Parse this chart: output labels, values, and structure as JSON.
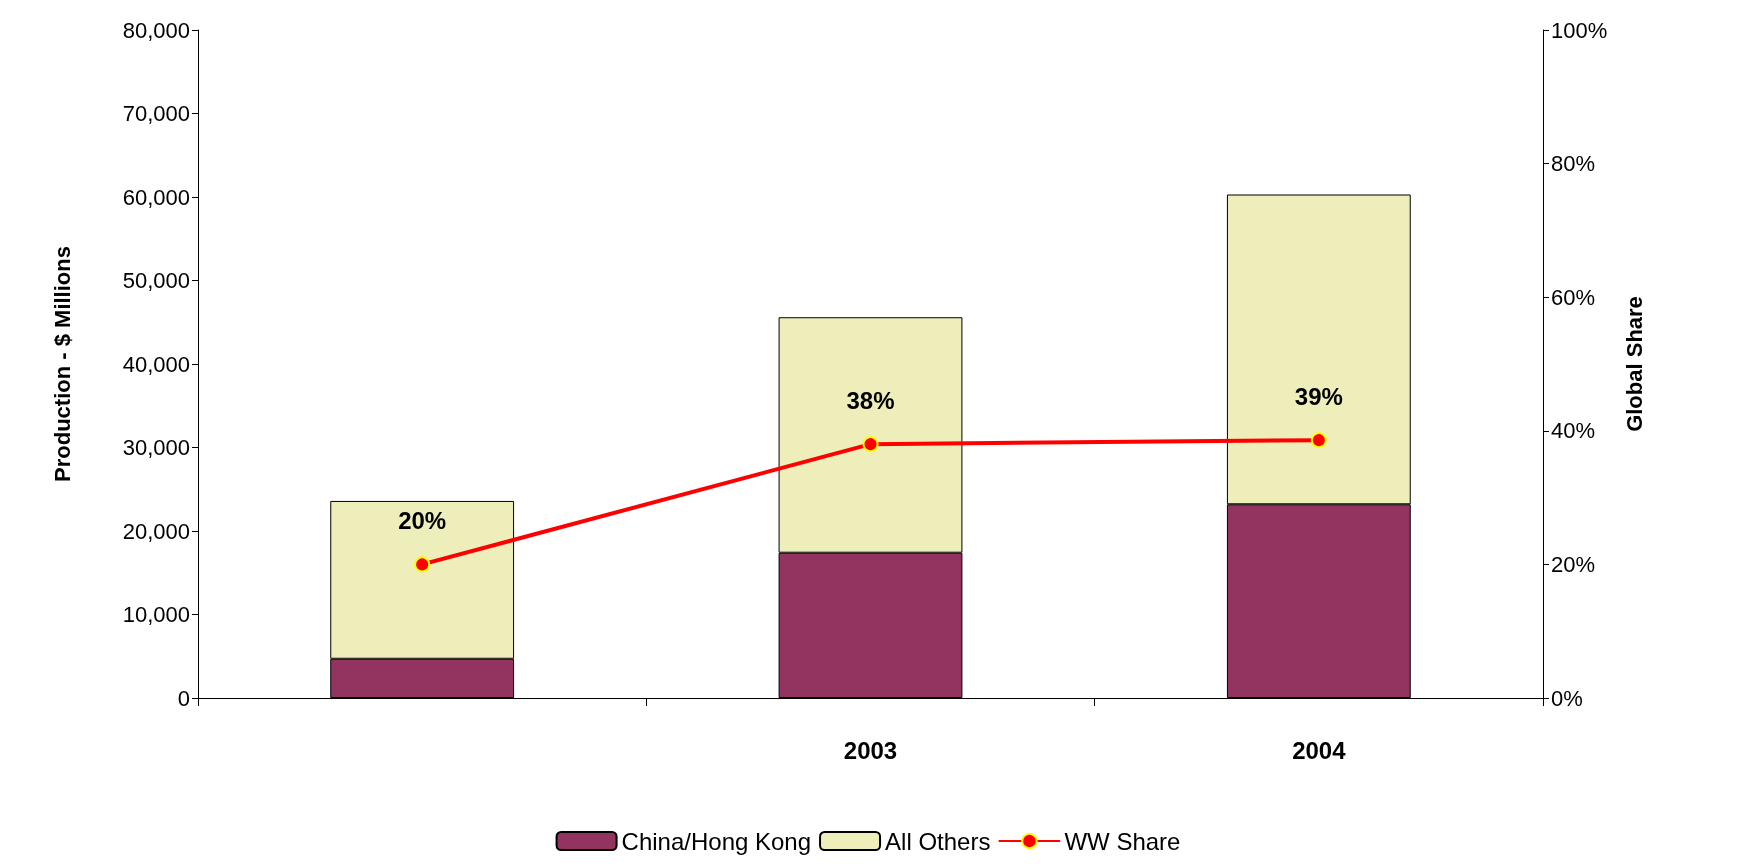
{
  "chart_data": {
    "type": "bar",
    "stacked": true,
    "categories": [
      null,
      "2003",
      "2004"
    ],
    "ylabel": "Production - $ Millions",
    "y2label": "Global Share",
    "ylim": [
      0,
      80000
    ],
    "yticks": [
      {
        "value": 0,
        "label": "0"
      },
      {
        "value": 10000,
        "label": "10,000"
      },
      {
        "value": 20000,
        "label": "20,000"
      },
      {
        "value": 30000,
        "label": "30,000"
      },
      {
        "value": 40000,
        "label": "40,000"
      },
      {
        "value": 50000,
        "label": "50,000"
      },
      {
        "value": 60000,
        "label": "60,000"
      },
      {
        "value": 70000,
        "label": "70,000"
      },
      {
        "value": 80000,
        "label": "80,000"
      }
    ],
    "y2lim": [
      0,
      100
    ],
    "y2ticks": [
      {
        "value": 0,
        "label": "0%"
      },
      {
        "value": 20,
        "label": "20%"
      },
      {
        "value": 40,
        "label": "40%"
      },
      {
        "value": 60,
        "label": "60%"
      },
      {
        "value": 80,
        "label": "80%"
      },
      {
        "value": 100,
        "label": "100%"
      }
    ],
    "series": [
      {
        "name": "China/Hong Kong",
        "color": "#93335f",
        "values": [
          4700,
          17400,
          23200
        ]
      },
      {
        "name": "All Others",
        "color": "#eeeebb",
        "values": [
          18900,
          28200,
          37100
        ]
      },
      {
        "name": "WW Share",
        "type": "line",
        "axis": "y2",
        "color": "#ff0000",
        "values": [
          20,
          38,
          38.6
        ],
        "value_labels": [
          "20%",
          "38%",
          "39%"
        ],
        "marker": "circle"
      }
    ],
    "grid": false,
    "legend": "bottom"
  }
}
